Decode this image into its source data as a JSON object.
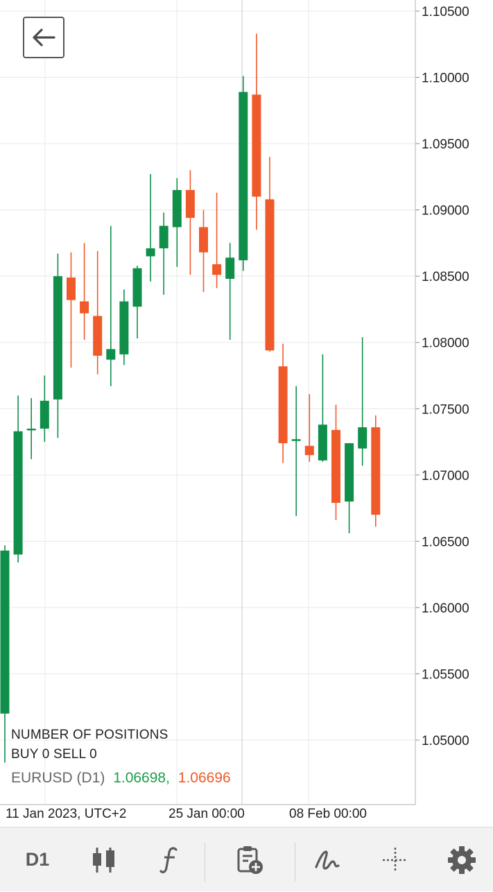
{
  "chart_data": {
    "type": "candlestick",
    "symbol": "EURUSD",
    "timeframe": "D1",
    "y_ticks": [
      "1.10500",
      "1.10000",
      "1.09500",
      "1.09000",
      "1.08500",
      "1.08000",
      "1.07500",
      "1.07000",
      "1.06500",
      "1.06000",
      "1.05500",
      "1.05000"
    ],
    "x_labels": [
      "11 Jan 2023, UTC+2",
      "25 Jan 00:00",
      "08 Feb 00:00"
    ],
    "ylim": [
      1.0435,
      1.1058
    ],
    "grid": true,
    "up_color": "#0f8f4a",
    "down_color": "#f0592a",
    "candles": [
      {
        "o": 1.052,
        "h": 1.0647,
        "l": 1.0483,
        "c": 1.0643
      },
      {
        "o": 1.064,
        "h": 1.076,
        "l": 1.0634,
        "c": 1.0733
      },
      {
        "o": 1.0734,
        "h": 1.0758,
        "l": 1.0712,
        "c": 1.0735
      },
      {
        "o": 1.0735,
        "h": 1.0775,
        "l": 1.0725,
        "c": 1.0756
      },
      {
        "o": 1.0757,
        "h": 1.0867,
        "l": 1.0728,
        "c": 1.085
      },
      {
        "o": 1.0849,
        "h": 1.0868,
        "l": 1.0781,
        "c": 1.0832
      },
      {
        "o": 1.0831,
        "h": 1.0875,
        "l": 1.0802,
        "c": 1.0822
      },
      {
        "o": 1.082,
        "h": 1.0869,
        "l": 1.0776,
        "c": 1.079
      },
      {
        "o": 1.0787,
        "h": 1.0888,
        "l": 1.0767,
        "c": 1.0795
      },
      {
        "o": 1.0791,
        "h": 1.084,
        "l": 1.0783,
        "c": 1.0831
      },
      {
        "o": 1.0827,
        "h": 1.0858,
        "l": 1.0803,
        "c": 1.0856
      },
      {
        "o": 1.0865,
        "h": 1.0927,
        "l": 1.0846,
        "c": 1.0871
      },
      {
        "o": 1.0871,
        "h": 1.0898,
        "l": 1.0836,
        "c": 1.0888
      },
      {
        "o": 1.0887,
        "h": 1.0924,
        "l": 1.0857,
        "c": 1.0915
      },
      {
        "o": 1.0915,
        "h": 1.093,
        "l": 1.0851,
        "c": 1.0894
      },
      {
        "o": 1.0887,
        "h": 1.09,
        "l": 1.0838,
        "c": 1.0868
      },
      {
        "o": 1.0859,
        "h": 1.0913,
        "l": 1.0841,
        "c": 1.0851
      },
      {
        "o": 1.0848,
        "h": 1.0875,
        "l": 1.0802,
        "c": 1.0864
      },
      {
        "o": 1.0862,
        "h": 1.1001,
        "l": 1.0854,
        "c": 1.0989
      },
      {
        "o": 1.0987,
        "h": 1.1033,
        "l": 1.0885,
        "c": 1.091
      },
      {
        "o": 1.0908,
        "h": 1.094,
        "l": 1.0793,
        "c": 1.0794
      },
      {
        "o": 1.0782,
        "h": 1.0799,
        "l": 1.0709,
        "c": 1.0724
      },
      {
        "o": 1.0726,
        "h": 1.0767,
        "l": 1.0669,
        "c": 1.0727
      },
      {
        "o": 1.0722,
        "h": 1.0761,
        "l": 1.071,
        "c": 1.0715
      },
      {
        "o": 1.0711,
        "h": 1.0791,
        "l": 1.071,
        "c": 1.0738
      },
      {
        "o": 1.0734,
        "h": 1.0753,
        "l": 1.0666,
        "c": 1.0679
      },
      {
        "o": 1.068,
        "h": 1.0724,
        "l": 1.0656,
        "c": 1.0724
      },
      {
        "o": 1.072,
        "h": 1.0804,
        "l": 1.0707,
        "c": 1.0736
      },
      {
        "o": 1.0736,
        "h": 1.0745,
        "l": 1.0661,
        "c": 1.067
      }
    ]
  },
  "positions": {
    "title": "NUMBER OF POSITIONS",
    "summary": "BUY 0 SELL 0"
  },
  "symbol_line": {
    "name": "EURUSD (D1)",
    "bid": "1.06698,",
    "ask": "1.06696"
  },
  "toolbar": {
    "timeframe_label": "D1",
    "icons": [
      "candlestick-icon",
      "indicator-f-icon",
      "new-order-icon",
      "draw-tool-icon",
      "crosshair-icon",
      "settings-gear-icon"
    ]
  },
  "colors": {
    "grid": "#e9e9e9",
    "axis": "#bdbdbd",
    "text": "#222222",
    "icon": "#5b5b5b",
    "toolbar_bg": "#f2f2f2"
  }
}
